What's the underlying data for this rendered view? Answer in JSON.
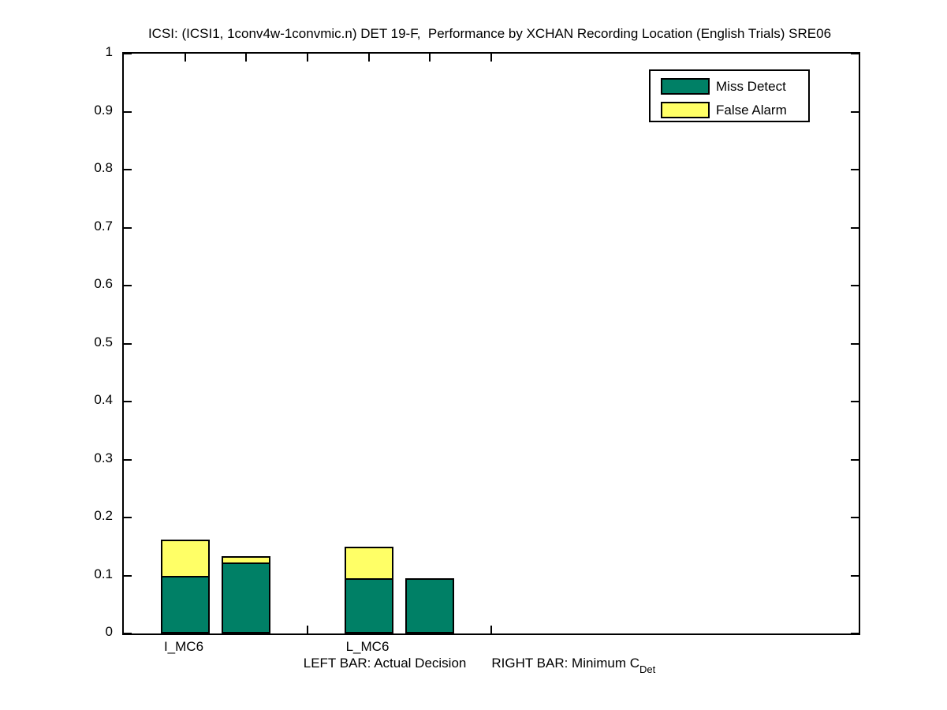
{
  "window": {
    "background_color": "#ffffff",
    "axis_color": "#000000"
  },
  "chart_data": {
    "type": "bar",
    "stacked": true,
    "title": "ICSI: (ICSI1, 1conv4w-1convmic.n) DET 19-F,  Performance by XCHAN Recording Location (English Trials) SRE06",
    "ylim": [
      0,
      1
    ],
    "ytick_values": [
      0,
      0.1,
      0.2,
      0.3,
      0.4,
      0.5,
      0.6,
      0.7,
      0.8,
      0.9,
      1
    ],
    "ytick_labels": [
      "0",
      "0.1",
      "0.2",
      "0.3",
      "0.4",
      "0.5",
      "0.6",
      "0.7",
      "0.8",
      "0.9",
      "1"
    ],
    "x_units_total": 12,
    "x_tick_units": [
      1,
      2,
      3,
      4,
      5,
      6
    ],
    "bar_width_units": 0.8,
    "grid": false,
    "legend_position": "top-right",
    "series_colors": {
      "miss_detect": "#008066",
      "false_alarm": "#FFFF66"
    },
    "legend": [
      {
        "label": "Miss Detect",
        "color": "#008066"
      },
      {
        "label": "False Alarm",
        "color": "#FFFF66"
      }
    ],
    "groups": [
      {
        "label": "I_MC6",
        "label_unit": 1,
        "bars": [
          {
            "name": "actual_decision",
            "x_unit": 1,
            "miss_detect": 0.099,
            "false_alarm": 0.063
          },
          {
            "name": "minimum_cdet",
            "x_unit": 2,
            "miss_detect": 0.122,
            "false_alarm": 0.011
          }
        ]
      },
      {
        "label": "L_MC6",
        "label_unit": 4,
        "bars": [
          {
            "name": "actual_decision",
            "x_unit": 4,
            "miss_detect": 0.095,
            "false_alarm": 0.055
          },
          {
            "name": "minimum_cdet",
            "x_unit": 5,
            "miss_detect": 0.095,
            "false_alarm": 0.0
          }
        ]
      }
    ],
    "xlabel_left": "LEFT BAR: Actual Decision",
    "xlabel_right": "RIGHT BAR: Minimum C",
    "xlabel_subscript": "Det"
  }
}
